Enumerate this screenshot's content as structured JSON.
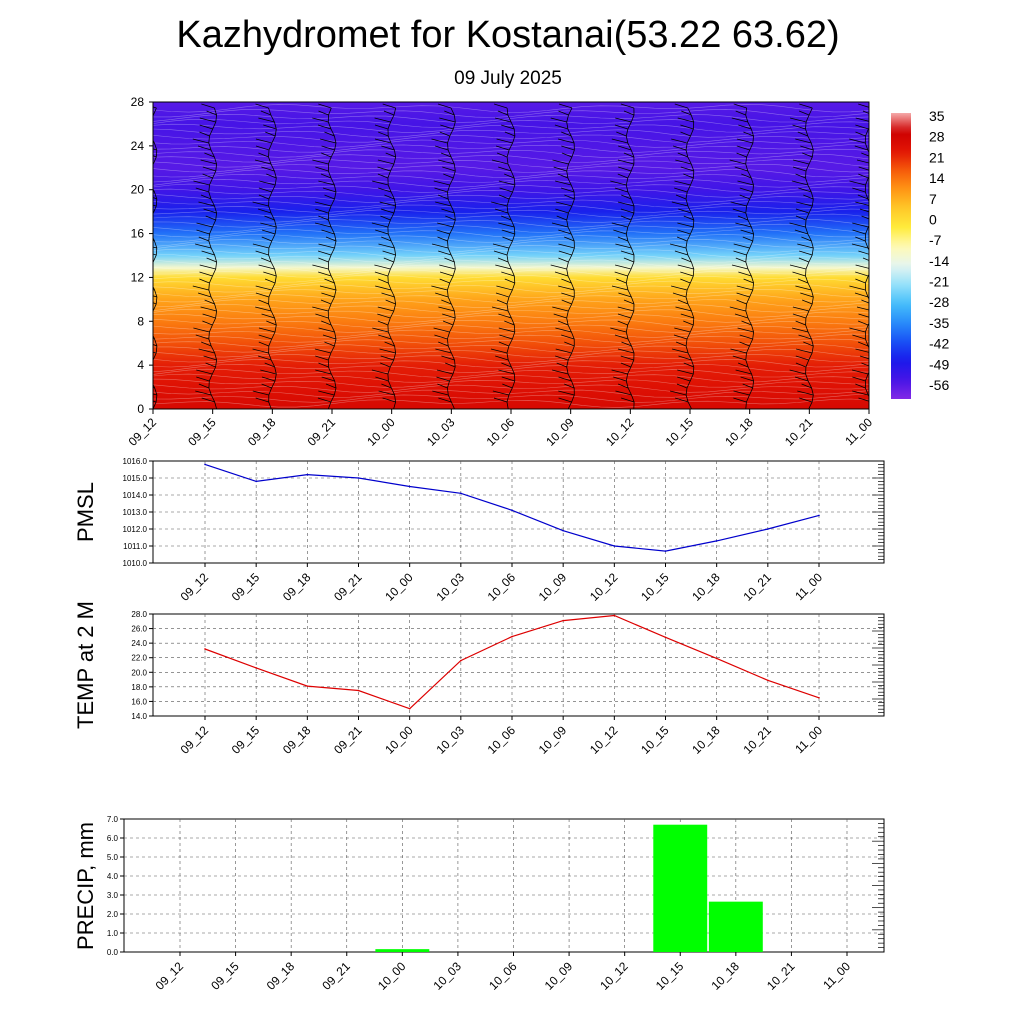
{
  "title": "Kazhydromet for Kostanai(53.22 63.62)",
  "subtitle": "09 July 2025",
  "colors": {
    "pmsl_line": "#0000cc",
    "temp_line": "#dd0000",
    "precip_bar": "#00ff00",
    "wind_barb": "#000000"
  },
  "chart_data": [
    {
      "type": "heatmap",
      "name": "vertical cross-section",
      "times": [
        "09_12",
        "09_15",
        "09_18",
        "09_21",
        "10_00",
        "10_03",
        "10_06",
        "10_09",
        "10_12",
        "10_15",
        "10_18",
        "10_21",
        "11_00"
      ],
      "ylim": [
        0,
        28
      ],
      "yticks": [
        0,
        4,
        8,
        12,
        16,
        20,
        24,
        28
      ],
      "colorbar_labels": [
        "35",
        "28",
        "21",
        "14",
        "7",
        "0",
        "-7",
        "-14",
        "-21",
        "-28",
        "-35",
        "-42",
        "-49",
        "-56"
      ],
      "colorbar_range": [
        -63,
        42
      ],
      "temperature_profile": {
        "levels": [
          0,
          2,
          4,
          6,
          8,
          10,
          12,
          12.9,
          14,
          16,
          18,
          20,
          22,
          24,
          26,
          28
        ],
        "values": [
          32,
          29,
          27,
          22,
          17,
          12,
          3,
          -10,
          -24,
          -38,
          -48,
          -55,
          -58,
          -57,
          -56,
          -58
        ]
      }
    },
    {
      "type": "line",
      "name": "PMSL",
      "ylabel": "PMSL",
      "categories": [
        "09_12",
        "09_15",
        "09_18",
        "09_21",
        "10_00",
        "10_03",
        "10_06",
        "10_09",
        "10_12",
        "10_15",
        "10_18",
        "10_21",
        "11_00"
      ],
      "values": [
        1015.8,
        1014.8,
        1015.2,
        1015.0,
        1014.5,
        1014.1,
        1013.1,
        1011.9,
        1011.0,
        1010.7,
        1011.3,
        1012.0,
        1012.8
      ],
      "ylim": [
        1010.0,
        1016.0
      ],
      "yticks": [
        "1010.0",
        "1011.0",
        "1012.0",
        "1013.0",
        "1014.0",
        "1015.0",
        "1016.0"
      ],
      "grid": true
    },
    {
      "type": "line",
      "name": "TEMP",
      "ylabel": "TEMP at 2 M",
      "categories": [
        "09_12",
        "09_15",
        "09_18",
        "09_21",
        "10_00",
        "10_03",
        "10_06",
        "10_09",
        "10_12",
        "10_15",
        "10_18",
        "10_21",
        "11_00"
      ],
      "values": [
        23.2,
        20.6,
        18.1,
        17.5,
        15.0,
        21.6,
        24.9,
        27.1,
        27.8,
        24.8,
        21.9,
        18.9,
        16.5
      ],
      "ylim": [
        14.0,
        28.0
      ],
      "yticks": [
        "14.0",
        "16.0",
        "18.0",
        "20.0",
        "22.0",
        "24.0",
        "26.0",
        "28.0"
      ],
      "grid": true
    },
    {
      "type": "bar",
      "name": "PRECIP",
      "ylabel": "PRECIP, mm",
      "categories": [
        "09_12",
        "09_15",
        "09_18",
        "09_21",
        "10_00",
        "10_03",
        "10_06",
        "10_09",
        "10_12",
        "10_15",
        "10_18",
        "10_21",
        "11_00"
      ],
      "values": [
        0,
        0,
        0,
        0,
        0.15,
        0,
        0,
        0,
        0,
        6.7,
        2.65,
        0,
        0
      ],
      "ylim": [
        0.0,
        7.0
      ],
      "yticks": [
        "0.0",
        "1.0",
        "2.0",
        "3.0",
        "4.0",
        "5.0",
        "6.0",
        "7.0"
      ],
      "grid": true
    }
  ]
}
